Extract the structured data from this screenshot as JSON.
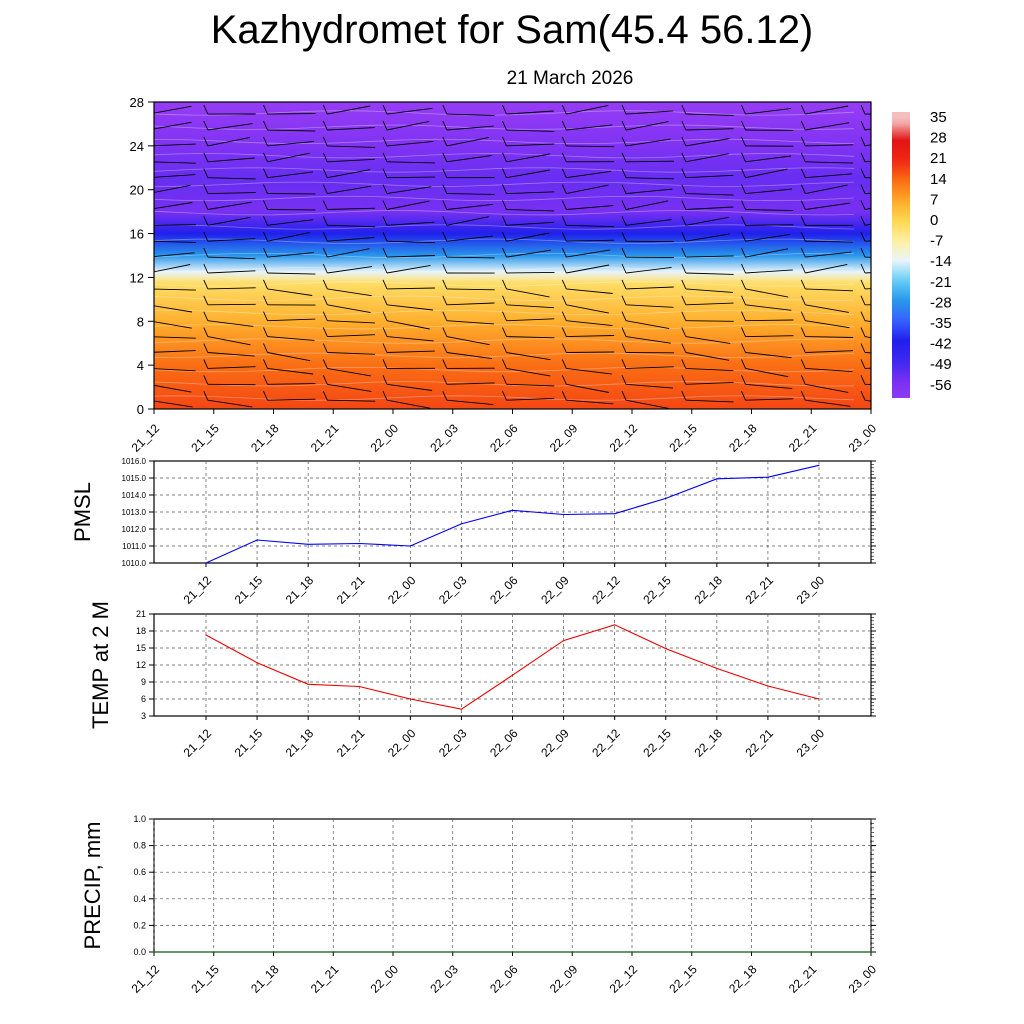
{
  "header": {
    "title": "Kazhydromet for Sam(45.4 56.12)",
    "date": "21 March 2026"
  },
  "time_labels": [
    "21_12",
    "21_15",
    "21_18",
    "21_21",
    "22_00",
    "22_03",
    "22_06",
    "22_09",
    "22_12",
    "22_15",
    "22_18",
    "22_21",
    "23_00"
  ],
  "chart_data": [
    {
      "type": "heatmap",
      "name": "vertical temperature cross-section with wind barbs",
      "title": "",
      "xlabel": "",
      "ylabel": "",
      "x_ticks": [
        "21_12",
        "21_15",
        "21_18",
        "21_21",
        "22_00",
        "22_03",
        "22_06",
        "22_09",
        "22_12",
        "22_15",
        "22_18",
        "22_21",
        "23_00"
      ],
      "y_ticks": [
        "0",
        "4",
        "8",
        "12",
        "16",
        "20",
        "24",
        "28"
      ],
      "ylim": [
        0,
        28
      ],
      "colorbar_labels": [
        "35",
        "28",
        "21",
        "14",
        "7",
        "0",
        "-7",
        "-14",
        "-21",
        "-28",
        "-35",
        "-42",
        "-49",
        "-56"
      ],
      "colorbar_colors": [
        "#f7c6c6",
        "#ee2020",
        "#e62828",
        "#f23a12",
        "#fb7a1a",
        "#ffc040",
        "#fff0a0",
        "#e8f4fb",
        "#5ec8f0",
        "#2aa0e8",
        "#4060ff",
        "#2a2af0",
        "#3020e8",
        "#7a30f2"
      ],
      "temperature_profile_c": [
        {
          "level": 0,
          "temp": 18
        },
        {
          "level": 4,
          "temp": 14
        },
        {
          "level": 8,
          "temp": 6
        },
        {
          "level": 11.5,
          "temp": -2
        },
        {
          "level": 12.5,
          "temp": -14
        },
        {
          "level": 14,
          "temp": -28
        },
        {
          "level": 16,
          "temp": -42
        },
        {
          "level": 18,
          "temp": -56
        },
        {
          "level": 21,
          "temp": -54
        },
        {
          "level": 24,
          "temp": -58
        },
        {
          "level": 28,
          "temp": -64
        }
      ]
    },
    {
      "type": "line",
      "name": "PMSL",
      "ylabel": "PMSL",
      "categories": [
        "21_12",
        "21_15",
        "21_18",
        "21_21",
        "22_00",
        "22_03",
        "22_06",
        "22_09",
        "22_12",
        "22_15",
        "22_18",
        "22_21",
        "23_00"
      ],
      "values": [
        1010.0,
        1011.35,
        1011.1,
        1011.15,
        1011.0,
        1012.3,
        1013.1,
        1012.85,
        1012.9,
        1013.8,
        1014.95,
        1015.05,
        1015.75
      ],
      "ylim": [
        1010.0,
        1016.0
      ],
      "y_ticks": [
        "1010.0",
        "1011.0",
        "1012.0",
        "1013.0",
        "1014.0",
        "1015.0",
        "1016.0"
      ],
      "color": "#0000ee",
      "grid": true
    },
    {
      "type": "line",
      "name": "TEMP at 2 M",
      "ylabel": "TEMP at 2 M",
      "categories": [
        "21_12",
        "21_15",
        "21_18",
        "21_21",
        "22_00",
        "22_03",
        "22_06",
        "22_09",
        "22_12",
        "22_15",
        "22_18",
        "22_21",
        "23_00"
      ],
      "values": [
        17.3,
        12.4,
        8.6,
        8.2,
        6.0,
        4.2,
        10.2,
        16.3,
        19.1,
        14.9,
        11.4,
        8.3,
        6.0
      ],
      "ylim": [
        3,
        21
      ],
      "y_ticks": [
        "3",
        "6",
        "9",
        "12",
        "15",
        "18",
        "21"
      ],
      "color": "#ee0000",
      "grid": true
    },
    {
      "type": "line",
      "name": "PRECIP, mm",
      "ylabel": "PRECIP, mm",
      "categories": [
        "21_12",
        "21_15",
        "21_18",
        "21_21",
        "22_00",
        "22_03",
        "22_06",
        "22_09",
        "22_12",
        "22_15",
        "22_18",
        "22_21",
        "23_00"
      ],
      "values": [
        0,
        0,
        0,
        0,
        0,
        0,
        0,
        0,
        0,
        0,
        0,
        0,
        0
      ],
      "ylim": [
        0.0,
        1.0
      ],
      "y_ticks": [
        "0.0",
        "0.2",
        "0.4",
        "0.6",
        "0.8",
        "1.0"
      ],
      "color": "#006400",
      "grid": true
    }
  ]
}
